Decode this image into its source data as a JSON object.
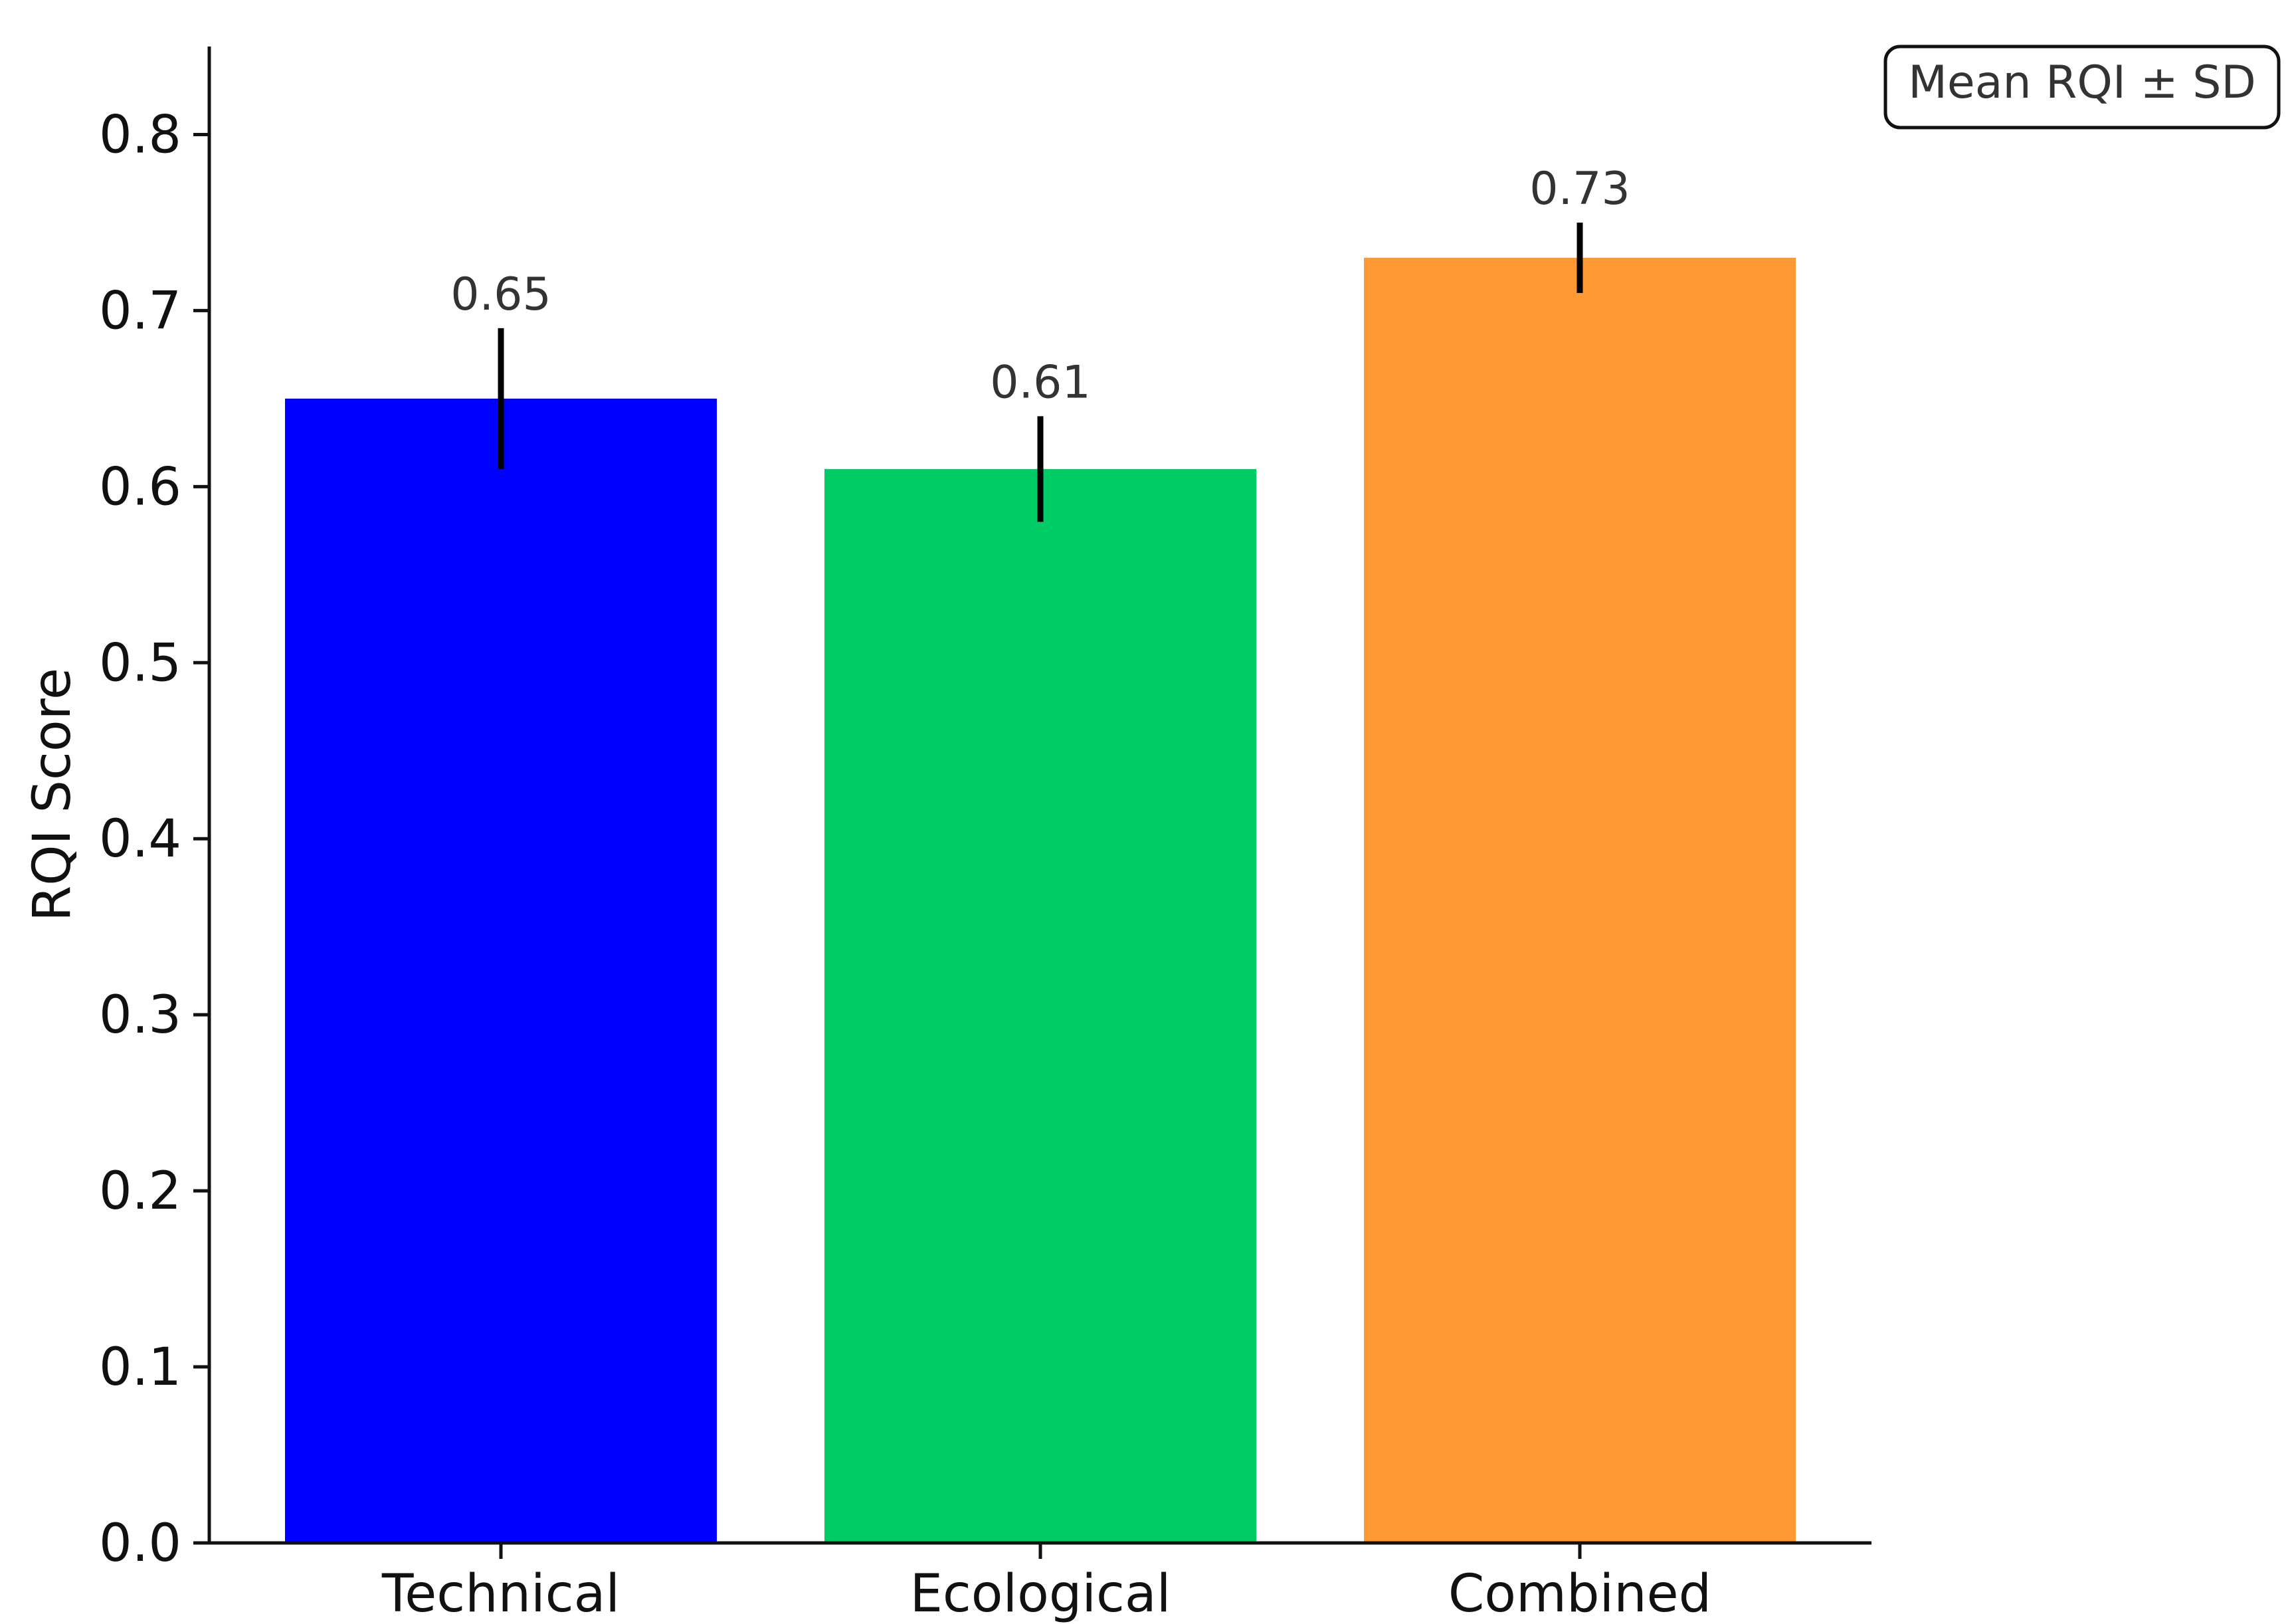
{
  "chart_data": {
    "type": "bar",
    "categories": [
      "Technical",
      "Ecological",
      "Combined"
    ],
    "values": [
      0.65,
      0.61,
      0.73
    ],
    "errors": [
      0.04,
      0.03,
      0.02
    ],
    "value_labels": [
      "0.65",
      "0.61",
      "0.73"
    ],
    "colors": [
      "#0000ff",
      "#00cc66",
      "#ff9933"
    ],
    "error_bar_color": "#000000",
    "title": "",
    "xlabel": "",
    "ylabel": "RQI Score",
    "ylim": [
      0,
      0.85
    ],
    "yticks": [
      0.0,
      0.1,
      0.2,
      0.3,
      0.4,
      0.5,
      0.6,
      0.7,
      0.8
    ],
    "ytick_labels": [
      "0.0",
      "0.1",
      "0.2",
      "0.3",
      "0.4",
      "0.5",
      "0.6",
      "0.7",
      "0.8"
    ],
    "grid": false,
    "legend": {
      "text": "Mean RQI ± SD",
      "placement": "top-right"
    }
  }
}
